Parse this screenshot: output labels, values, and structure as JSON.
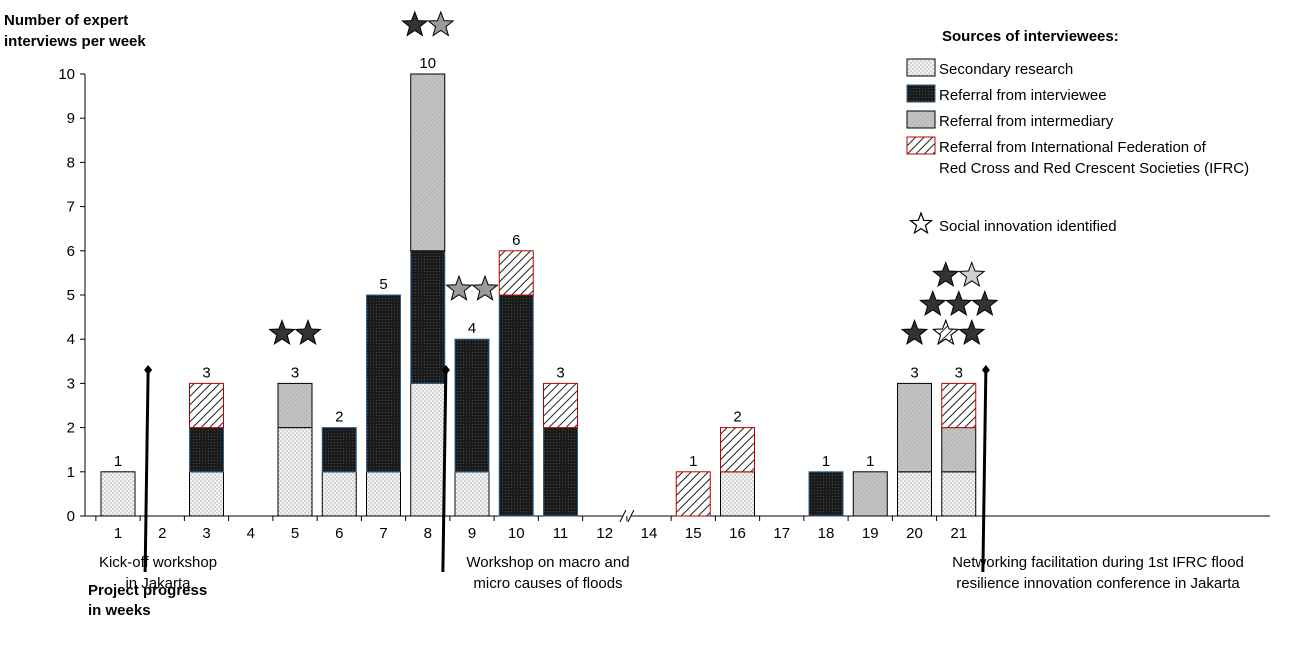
{
  "chart_data": {
    "type": "bar",
    "stacked": true,
    "y_axis_title_line1": "Number of expert",
    "y_axis_title_line2": "interviews per week",
    "x_axis_title_line1": "Project progress",
    "x_axis_title_line2": "in weeks",
    "ylim": [
      0,
      10
    ],
    "yticks": [
      0,
      1,
      2,
      3,
      4,
      5,
      6,
      7,
      8,
      9,
      10
    ],
    "categories": [
      "1",
      "2",
      "3",
      "4",
      "5",
      "6",
      "7",
      "8",
      "9",
      "10",
      "11",
      "12",
      "14",
      "15",
      "16",
      "17",
      "18",
      "19",
      "20",
      "21"
    ],
    "axis_break_between": [
      "12",
      "14"
    ],
    "series": [
      {
        "name": "Secondary research",
        "pattern": "dots",
        "color": "#f2f2f2",
        "values": [
          1,
          0,
          1,
          0,
          2,
          1,
          1,
          3,
          1,
          0,
          0,
          0,
          0,
          0,
          1,
          0,
          0,
          0,
          1,
          1
        ]
      },
      {
        "name": "Referral from interviewee",
        "pattern": "dark",
        "color": "#1a1a1a",
        "values": [
          0,
          0,
          1,
          0,
          0,
          1,
          4,
          3,
          3,
          5,
          2,
          0,
          0,
          0,
          0,
          0,
          1,
          0,
          0,
          0
        ]
      },
      {
        "name": "Referral from intermediary",
        "pattern": "grey",
        "color": "#bfbfbf",
        "values": [
          0,
          0,
          0,
          0,
          1,
          0,
          0,
          4,
          0,
          0,
          0,
          0,
          0,
          0,
          0,
          0,
          0,
          1,
          2,
          1
        ]
      },
      {
        "name_line1": "Referral from International Federation of",
        "name_line2": "Red Cross and Red Crescent Societies (IFRC)",
        "pattern": "hatch",
        "color": "#c00000",
        "values": [
          0,
          0,
          1,
          0,
          0,
          0,
          0,
          0,
          0,
          1,
          1,
          0,
          0,
          1,
          1,
          0,
          0,
          0,
          0,
          1
        ]
      }
    ],
    "totals": [
      {
        "category": "1",
        "label": "1"
      },
      {
        "category": "3",
        "label": "3"
      },
      {
        "category": "5",
        "label": "3"
      },
      {
        "category": "6",
        "label": "2"
      },
      {
        "category": "7",
        "label": "5"
      },
      {
        "category": "8",
        "label": "10"
      },
      {
        "category": "9",
        "label": "4"
      },
      {
        "category": "10",
        "label": "6"
      },
      {
        "category": "11",
        "label": "3"
      },
      {
        "category": "15",
        "label": "1"
      },
      {
        "category": "16",
        "label": "2"
      },
      {
        "category": "18",
        "label": "1"
      },
      {
        "category": "19",
        "label": "1"
      },
      {
        "category": "20",
        "label": "3"
      },
      {
        "category": "21",
        "label": "3"
      }
    ],
    "legend_title": "Sources of interviewees:",
    "legend_position": "top-right",
    "star_legend_label": "Social innovation identified",
    "stars": [
      {
        "category": "5",
        "rows": [
          [
            "dark",
            "dark"
          ]
        ]
      },
      {
        "category": "8",
        "rows": [
          [
            "dark",
            "grey"
          ]
        ]
      },
      {
        "category": "9",
        "rows": [
          [
            "grey",
            "grey"
          ]
        ]
      },
      {
        "category": "20",
        "rows": [
          [
            "dark"
          ]
        ]
      },
      {
        "category": "21",
        "rows": [
          [
            "dark",
            "light"
          ],
          [
            "dark",
            "dark",
            "dark"
          ],
          [
            "hatch",
            "dark"
          ]
        ]
      }
    ],
    "milestones": [
      {
        "after_category": "1",
        "line1": "Kick-off workshop",
        "line2": "in Jakarta"
      },
      {
        "after_category": "8",
        "line1": "Workshop on macro and",
        "line2": "micro causes of floods"
      },
      {
        "after_category": "21",
        "line1": "Networking facilitation during 1st IFRC flood",
        "line2": "resilience innovation conference in Jakarta"
      }
    ],
    "colors": {
      "dark": "#1a1a1a",
      "grey": "#bfbfbf",
      "light_fill": "#f2f2f2",
      "ifrc_border": "#c00000",
      "bar_border_blue": "#2f5f8a"
    }
  }
}
